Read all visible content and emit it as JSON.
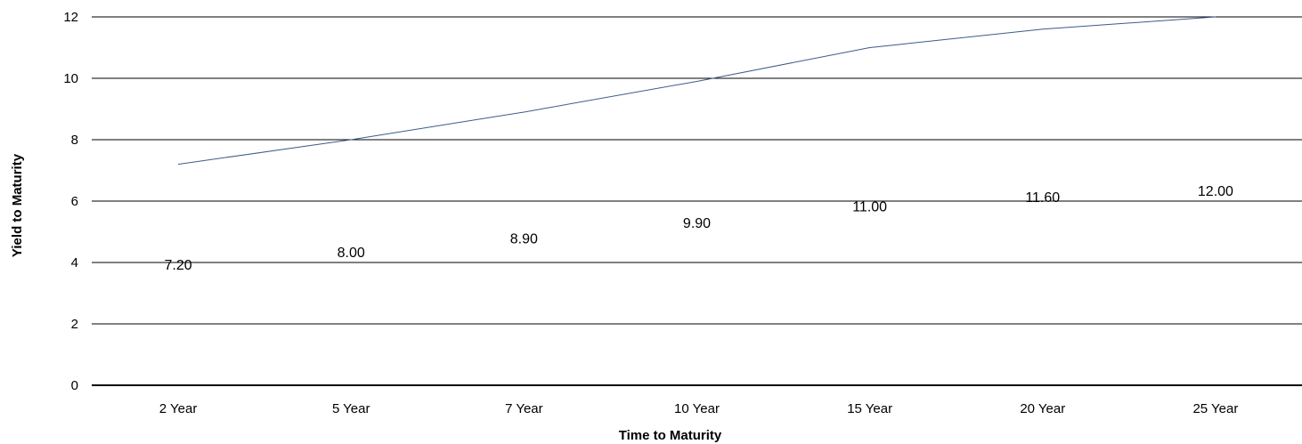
{
  "chart_data": {
    "type": "line",
    "title": "",
    "xlabel": "Time to Maturity",
    "ylabel": "Yield to Maturity",
    "categories": [
      "2 Year",
      "5 Year",
      "7 Year",
      "10 Year",
      "15 Year",
      "20 Year",
      "25 Year"
    ],
    "series": [
      {
        "values": [
          7.2,
          8.0,
          8.9,
          9.9,
          11.0,
          11.6,
          12.0
        ],
        "data_labels": [
          "7.20",
          "8.00",
          "8.90",
          "9.90",
          "11.00",
          "11.60",
          "12.00"
        ]
      }
    ],
    "ylim": [
      0,
      12
    ],
    "yticks": [
      0,
      2,
      4,
      6,
      8,
      10,
      12
    ],
    "grid": true,
    "legend": "none",
    "colors": {
      "series": "#3d5a8a",
      "grid": "#000000",
      "text": "#000000"
    }
  }
}
